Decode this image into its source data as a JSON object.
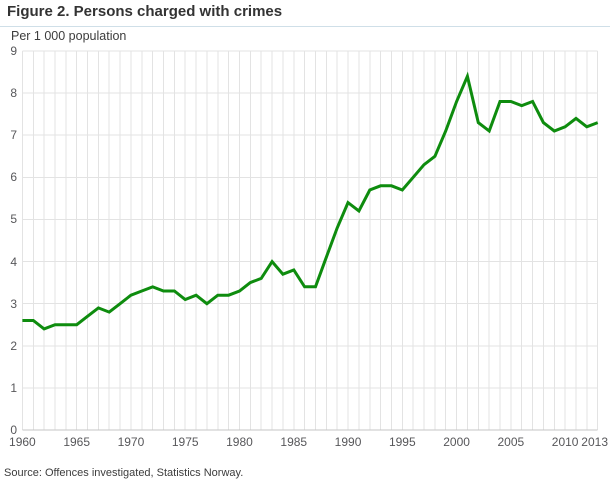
{
  "figure": {
    "title": "Figure 2. Persons charged with crimes",
    "unit_label": "Per 1 000 population",
    "source": "Source: Offences investigated, Statistics Norway."
  },
  "colors": {
    "line": "#0e8c0e",
    "grid": "#e3e3e3",
    "axis": "#c6c6c6",
    "divider": "#cfdfe8",
    "title_text": "#333333",
    "tick_text": "#57575a"
  },
  "chart_data": {
    "type": "line",
    "title": "Figure 2. Persons charged with crimes",
    "ylabel": "Per 1 000 population",
    "xlabel": "",
    "x_range": [
      1960,
      2013
    ],
    "ylim": [
      0,
      9
    ],
    "grid": "both",
    "legend": "none",
    "y_ticks": [
      0,
      1,
      2,
      3,
      4,
      5,
      6,
      7,
      8,
      9
    ],
    "x_tick_years": [
      1960,
      1965,
      1970,
      1975,
      1980,
      1985,
      1990,
      1995,
      2000,
      2005,
      2010,
      2013
    ],
    "x_tick_labels": [
      "1960",
      "1965",
      "1970",
      "1975",
      "1980",
      "1985",
      "1990",
      "1995",
      "2000",
      "2005",
      "2010",
      "2013"
    ],
    "series": [
      {
        "name": "Persons charged per 1 000 population",
        "x": [
          1960,
          1961,
          1962,
          1963,
          1964,
          1965,
          1966,
          1967,
          1968,
          1969,
          1970,
          1971,
          1972,
          1973,
          1974,
          1975,
          1976,
          1977,
          1978,
          1979,
          1980,
          1981,
          1982,
          1983,
          1984,
          1985,
          1986,
          1987,
          1988,
          1989,
          1990,
          1991,
          1992,
          1993,
          1994,
          1995,
          1996,
          1997,
          1998,
          1999,
          2000,
          2001,
          2002,
          2003,
          2004,
          2005,
          2006,
          2007,
          2008,
          2009,
          2010,
          2011,
          2012,
          2013
        ],
        "values": [
          2.6,
          2.6,
          2.4,
          2.5,
          2.5,
          2.5,
          2.7,
          2.9,
          2.8,
          3.0,
          3.2,
          3.3,
          3.4,
          3.3,
          3.3,
          3.1,
          3.2,
          3.0,
          3.2,
          3.2,
          3.3,
          3.5,
          3.6,
          4.0,
          3.7,
          3.8,
          3.4,
          3.4,
          4.1,
          4.8,
          5.4,
          5.2,
          5.7,
          5.8,
          5.8,
          5.7,
          6.0,
          6.3,
          6.5,
          7.1,
          7.8,
          8.4,
          7.3,
          7.1,
          7.8,
          7.8,
          7.7,
          7.8,
          7.3,
          7.1,
          7.2,
          7.4,
          7.2,
          7.3
        ]
      }
    ]
  }
}
